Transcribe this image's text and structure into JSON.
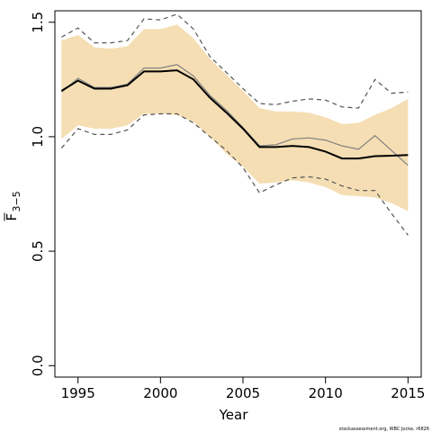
{
  "chart_data": {
    "type": "line",
    "xlabel": "Year",
    "ylabel_main": "F",
    "ylabel_sub": "3−5",
    "credit": "stockassessment.org, WBC Jocke, r6826",
    "xlim": [
      1993.6,
      2015.8
    ],
    "ylim": [
      -0.05,
      1.55
    ],
    "x_ticks": [
      1995,
      2000,
      2005,
      2010,
      2015
    ],
    "y_ticks": [
      0.0,
      0.5,
      1.0,
      1.5
    ],
    "y_tick_labels": [
      "0.0",
      "0.5",
      "1.0",
      "1.5"
    ],
    "x": [
      1994,
      1995,
      1996,
      1997,
      1998,
      1999,
      2000,
      2001,
      2002,
      2003,
      2004,
      2005,
      2006,
      2007,
      2008,
      2009,
      2010,
      2011,
      2012,
      2013,
      2014,
      2015
    ],
    "series": [
      {
        "role": "estimate",
        "values": [
          1.2,
          1.245,
          1.21,
          1.21,
          1.225,
          1.285,
          1.285,
          1.29,
          1.25,
          1.17,
          1.105,
          1.035,
          0.955,
          0.955,
          0.96,
          0.955,
          0.935,
          0.905,
          0.905,
          0.915,
          0.917,
          0.92
        ],
        "color": "#000000"
      },
      {
        "role": "comparison",
        "values": [
          1.195,
          1.255,
          1.215,
          1.215,
          1.23,
          1.3,
          1.3,
          1.315,
          1.265,
          1.18,
          1.115,
          1.04,
          0.96,
          0.965,
          0.99,
          0.995,
          0.985,
          0.96,
          0.945,
          1.005,
          0.94,
          0.875
        ],
        "color": "#808080"
      },
      {
        "role": "upper-dashed",
        "values": [
          1.435,
          1.475,
          1.41,
          1.41,
          1.42,
          1.515,
          1.51,
          1.535,
          1.47,
          1.35,
          1.28,
          1.21,
          1.145,
          1.14,
          1.155,
          1.165,
          1.16,
          1.13,
          1.125,
          1.25,
          1.19,
          1.195
        ],
        "color": "#555555"
      },
      {
        "role": "lower-dashed",
        "values": [
          0.95,
          1.035,
          1.01,
          1.01,
          1.03,
          1.095,
          1.1,
          1.1,
          1.06,
          1.0,
          0.94,
          0.865,
          0.755,
          0.79,
          0.82,
          0.825,
          0.815,
          0.785,
          0.765,
          0.765,
          0.665,
          0.57
        ],
        "color": "#555555"
      }
    ],
    "band": {
      "color": "#f5deb3",
      "upper": [
        1.42,
        1.445,
        1.39,
        1.385,
        1.395,
        1.47,
        1.47,
        1.49,
        1.43,
        1.34,
        1.27,
        1.2,
        1.125,
        1.11,
        1.11,
        1.105,
        1.085,
        1.055,
        1.06,
        1.095,
        1.125,
        1.165
      ],
      "lower": [
        0.99,
        1.05,
        1.035,
        1.035,
        1.05,
        1.1,
        1.1,
        1.095,
        1.065,
        1.0,
        0.925,
        0.87,
        0.795,
        0.8,
        0.81,
        0.8,
        0.78,
        0.745,
        0.74,
        0.735,
        0.71,
        0.675
      ]
    }
  }
}
